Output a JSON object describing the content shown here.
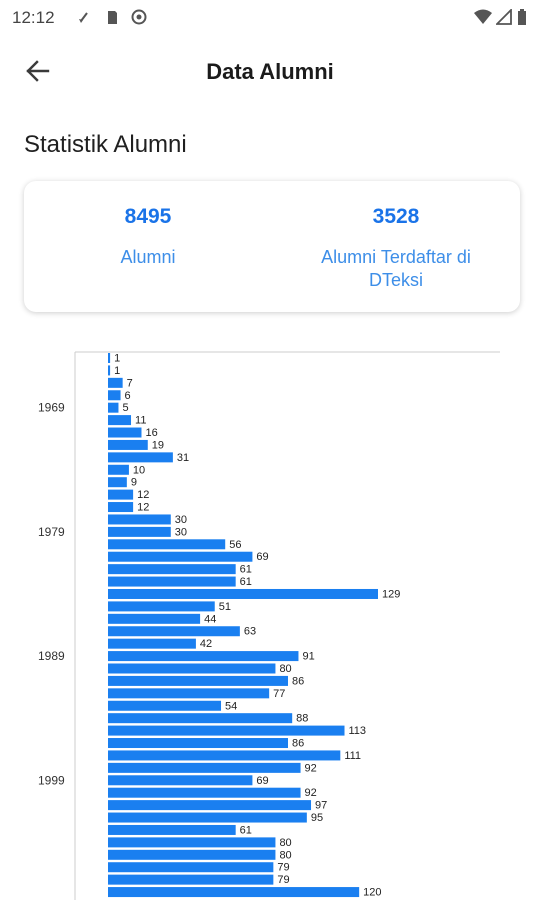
{
  "status_bar": {
    "time": "12:12",
    "left_icons": [
      "data-transfer-icon",
      "sd-card-icon",
      "vpn-icon"
    ],
    "right_icons": [
      "wifi-icon",
      "signal-icon",
      "battery-icon"
    ]
  },
  "app_bar": {
    "back_icon": "arrow-left-icon",
    "title": "Data Alumni"
  },
  "section": {
    "title": "Statistik Alumni"
  },
  "stats": {
    "total_value": "8495",
    "total_label": "Alumni",
    "registered_value": "3528",
    "registered_label_line1": "Alumni Terdaftar di",
    "registered_label_line2": "DTeksi"
  },
  "colors": {
    "accent": "#1a73e8",
    "bar": "#1a7ff0"
  },
  "chart_data": {
    "type": "bar",
    "orientation": "horizontal",
    "year_labels": [
      {
        "year": "1969",
        "index": 4
      },
      {
        "year": "1979",
        "index": 14
      },
      {
        "year": "1989",
        "index": 24
      },
      {
        "year": "1999",
        "index": 34
      }
    ],
    "values": [
      1,
      1,
      7,
      6,
      5,
      11,
      16,
      19,
      31,
      10,
      9,
      12,
      12,
      30,
      30,
      56,
      69,
      61,
      61,
      129,
      51,
      44,
      63,
      42,
      91,
      80,
      86,
      77,
      54,
      88,
      113,
      86,
      111,
      92,
      69,
      92,
      97,
      95,
      61,
      80,
      80,
      79,
      79,
      120
    ],
    "xlim": [
      0,
      185
    ]
  }
}
